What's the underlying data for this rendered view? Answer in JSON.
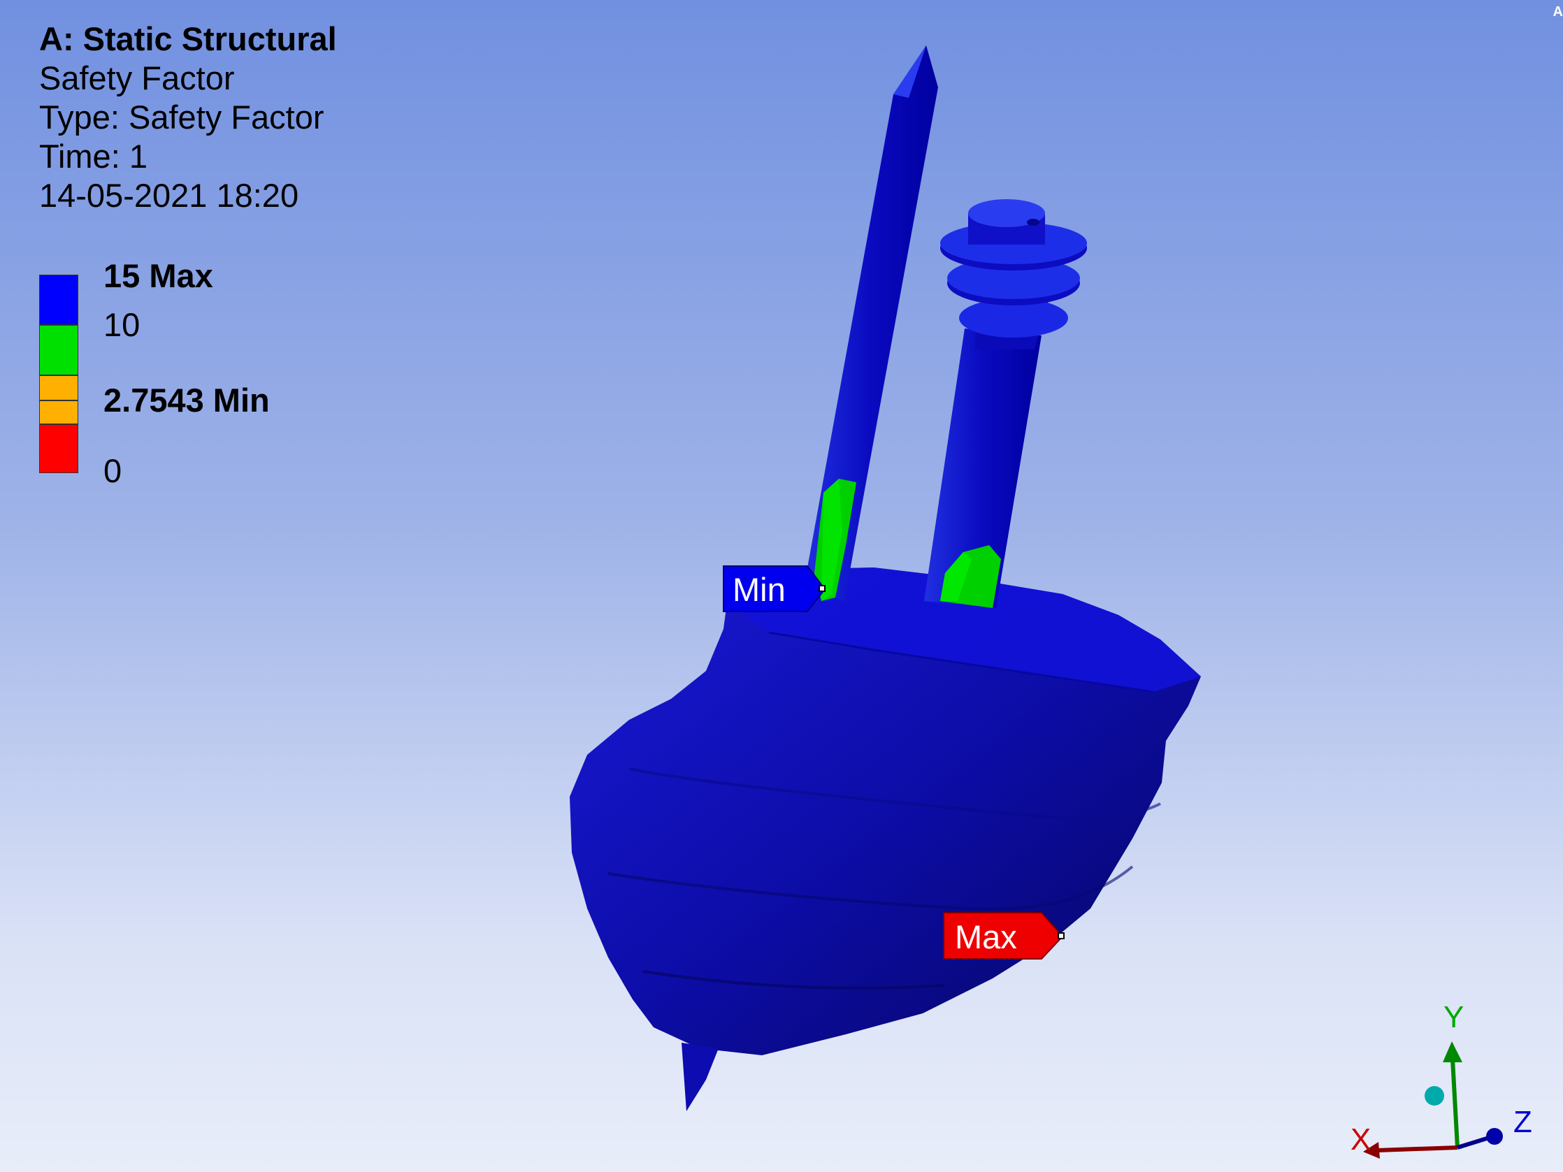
{
  "header": {
    "title": "A: Static Structural",
    "result_name": "Safety Factor",
    "type_line": "Type: Safety Factor",
    "time_line": "Time: 1",
    "timestamp": "14-05-2021 18:20"
  },
  "legend": {
    "max_label": "15 Max",
    "label_10": "10",
    "min_label": "2.7543 Min",
    "zero_label": "0",
    "bands": [
      {
        "color": "#0000ff",
        "from": 10,
        "to": 15
      },
      {
        "color": "#00e000",
        "from": 5,
        "to": 10
      },
      {
        "color": "#ffb000",
        "from": 2.7543,
        "to": 5
      },
      {
        "color": "#ff0000",
        "from": 0,
        "to": 2.7543
      }
    ]
  },
  "probes": {
    "min_label": "Min",
    "max_label": "Max"
  },
  "triad": {
    "x_label": "X",
    "y_label": "Y",
    "z_label": "Z"
  },
  "corner_text": "A"
}
